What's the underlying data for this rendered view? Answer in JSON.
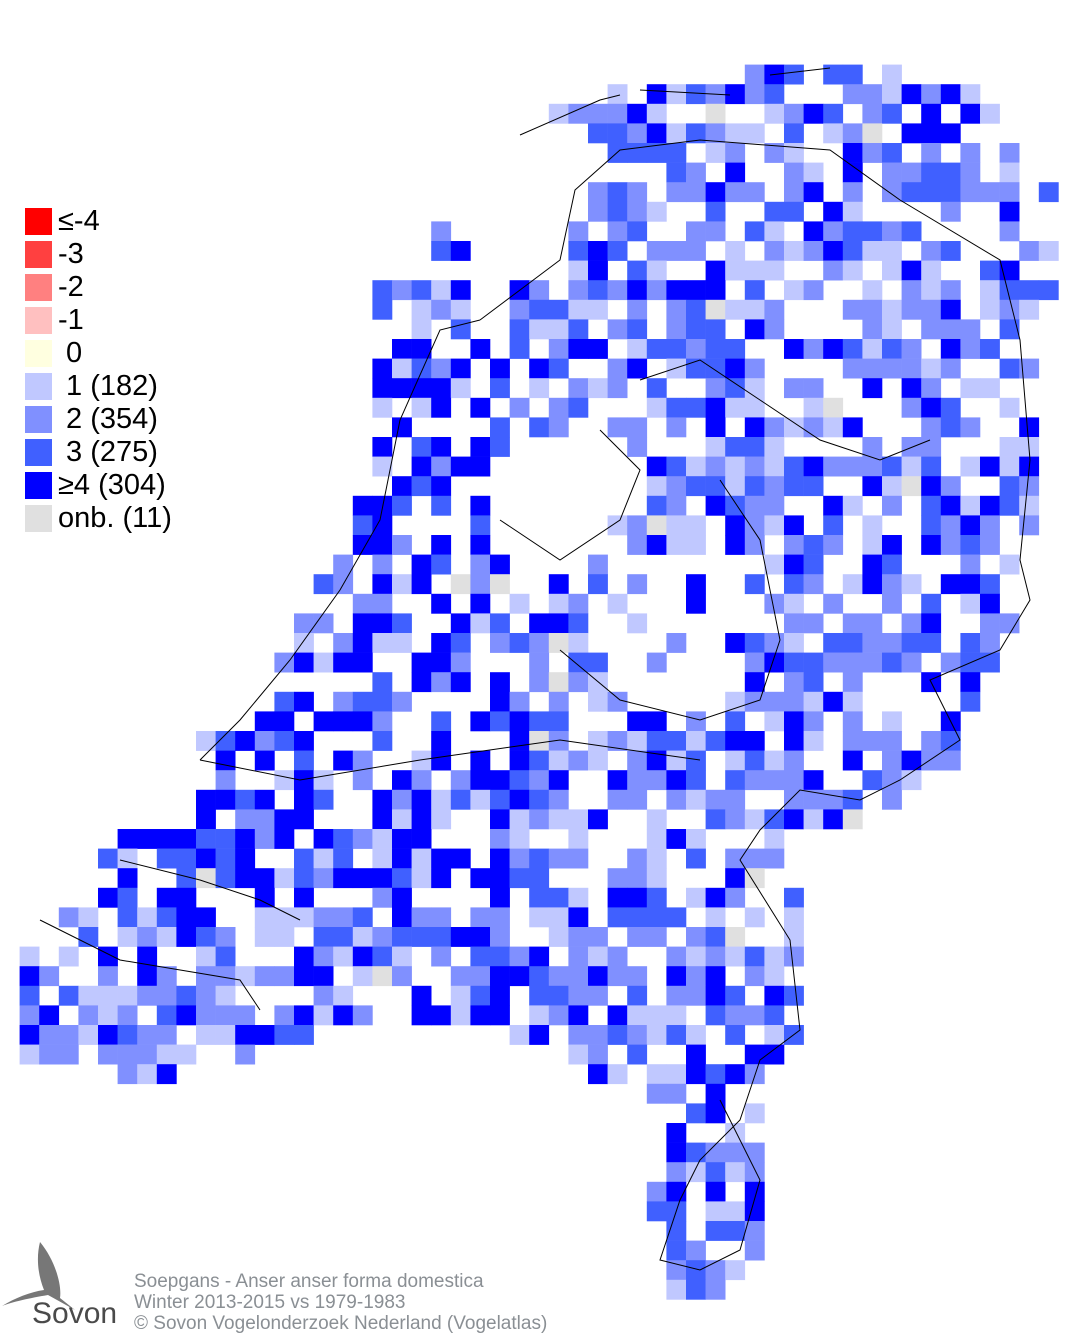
{
  "legend": [
    {
      "label": "≤-4",
      "color": "#ff0000"
    },
    {
      "label": "-3",
      "color": "#ff4040"
    },
    {
      "label": "-2",
      "color": "#ff8080"
    },
    {
      "label": "-1",
      "color": "#ffc0c0"
    },
    {
      "label": " 0",
      "color": "#ffffe0"
    },
    {
      "label": " 1 (182)",
      "color": "#c0c8ff"
    },
    {
      "label": " 2 (354)",
      "color": "#8090ff"
    },
    {
      "label": " 3 (275)",
      "color": "#4060ff"
    },
    {
      "label": "≥4 (304)",
      "color": "#0000ff"
    },
    {
      "label": "onb. (11)",
      "color": "#e0e0e0"
    }
  ],
  "footer": {
    "line1": "Soepgans - Anser anser forma domestica",
    "line2": "Winter 2013-2015 vs 1979-1983",
    "line3": "© Sovon Vogelonderzoek Nederland (Vogelatlas)"
  },
  "logo": {
    "text": "Sovon",
    "icon": "swallow-icon"
  }
}
